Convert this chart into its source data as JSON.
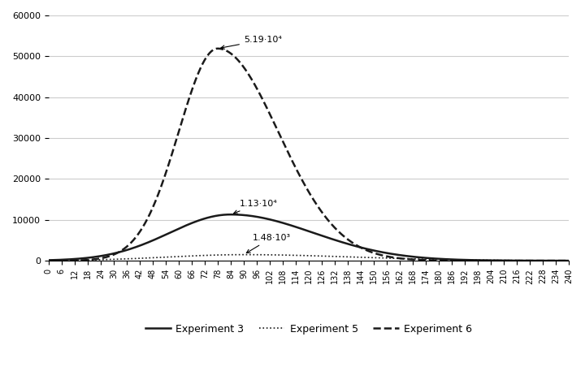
{
  "title": "",
  "xlabel": "",
  "ylabel": "",
  "xlim": [
    0,
    240
  ],
  "ylim": [
    0,
    60000
  ],
  "yticks": [
    0,
    10000,
    20000,
    30000,
    40000,
    50000,
    60000
  ],
  "xticks": [
    0,
    6,
    12,
    18,
    24,
    30,
    36,
    42,
    48,
    54,
    60,
    66,
    72,
    78,
    84,
    90,
    96,
    102,
    108,
    114,
    120,
    126,
    132,
    138,
    144,
    150,
    156,
    162,
    168,
    174,
    180,
    186,
    192,
    198,
    204,
    210,
    216,
    222,
    228,
    234,
    240
  ],
  "exp3_peak": 11300,
  "exp3_peak_x": 84,
  "exp5_peak": 1480,
  "exp5_peak_x": 90,
  "exp6_peak": 51900,
  "exp6_peak_x": 78,
  "annotation_exp3": "1.13·10⁴",
  "annotation_exp5": "1.48·10³",
  "annotation_exp6": "5.19·10⁴",
  "line_color": "#1a1a1a",
  "background_color": "#ffffff",
  "legend_exp3": "Experiment 3",
  "legend_exp5": "Experiment 5",
  "legend_exp6": "Experiment 6"
}
